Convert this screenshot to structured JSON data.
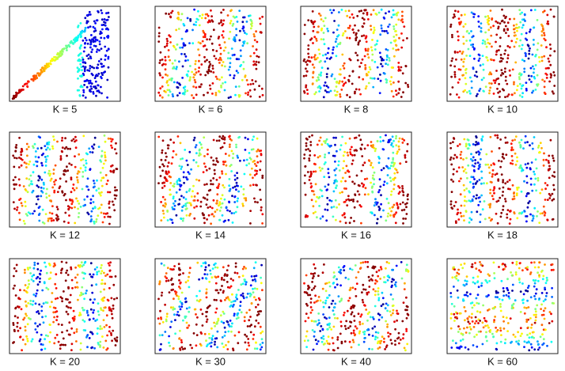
{
  "panels": [
    {
      "label": "K = 5"
    },
    {
      "label": "K = 6"
    },
    {
      "label": "K = 8"
    },
    {
      "label": "K = 10"
    },
    {
      "label": "K = 12"
    },
    {
      "label": "K = 14"
    },
    {
      "label": "K = 16"
    },
    {
      "label": "K = 18"
    },
    {
      "label": "K = 20"
    },
    {
      "label": "K = 30"
    },
    {
      "label": "K = 40"
    },
    {
      "label": "K = 60"
    }
  ]
}
